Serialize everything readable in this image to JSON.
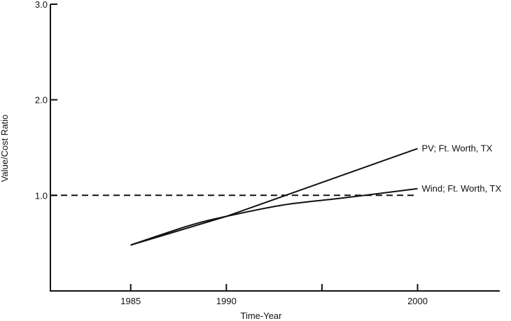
{
  "chart_data": {
    "type": "line",
    "title": "",
    "xlabel": "Time-Year",
    "ylabel": "Value/Cost Ratio",
    "xlim": [
      1980.8,
      2004.3
    ],
    "ylim": [
      0,
      3.0
    ],
    "x_ticks": [
      1985,
      1990,
      1995,
      2000
    ],
    "x_tick_labels": [
      "1985",
      "1990",
      "",
      "2000"
    ],
    "y_ticks": [
      1.0,
      2.0,
      3.0
    ],
    "y_tick_labels": [
      "1.0",
      "2.0",
      "3.0"
    ],
    "grid": false,
    "legend": "none",
    "series": [
      {
        "name": "PV; Ft. Worth, TX",
        "style": "solid",
        "x": [
          1985,
          1990,
          2000
        ],
        "y": [
          0.48,
          0.78,
          1.49
        ]
      },
      {
        "name": "Wind; Ft. Worth, TX",
        "style": "solid",
        "x": [
          1985,
          1988,
          1990,
          1993,
          1996,
          2000
        ],
        "y": [
          0.48,
          0.68,
          0.78,
          0.9,
          0.97,
          1.07
        ]
      },
      {
        "name": "",
        "style": "dashed",
        "x": [
          1980.8,
          2000
        ],
        "y": [
          1.0,
          1.0
        ]
      }
    ],
    "colors": {
      "line": "#111111",
      "axis": "#111111"
    }
  }
}
